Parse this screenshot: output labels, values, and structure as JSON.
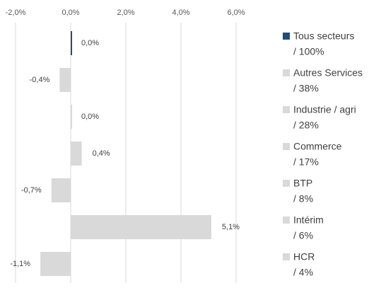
{
  "chart_data": {
    "type": "barh",
    "categories": [
      [
        "Tous secteurs",
        "/ 100%"
      ],
      [
        "Autres Services",
        "/ 38%"
      ],
      [
        "Industrie / agri",
        "/ 28%"
      ],
      [
        "Commerce",
        "/ 17%"
      ],
      [
        "BTP",
        "/ 8%"
      ],
      [
        "Intérim",
        "/ 6%"
      ],
      [
        "HCR",
        "/ 4%"
      ]
    ],
    "values": [
      0.0,
      -0.4,
      0.0,
      0.4,
      -0.7,
      5.1,
      -1.1
    ],
    "value_labels": [
      "0,0%",
      "-0,4%",
      "0,0%",
      "0,4%",
      "-0,7%",
      "5,1%",
      "-1,1%"
    ],
    "colors": [
      "#1f4e79",
      "#d9d9d9",
      "#d9d9d9",
      "#d9d9d9",
      "#d9d9d9",
      "#d9d9d9",
      "#d9d9d9"
    ],
    "xlim": [
      -2.0,
      6.0
    ],
    "xticks": [
      {
        "value": -2.0,
        "label": "-2,0%"
      },
      {
        "value": 0.0,
        "label": "0,0%"
      },
      {
        "value": 2.0,
        "label": "2,0%"
      },
      {
        "value": 4.0,
        "label": "4,0%"
      },
      {
        "value": 6.0,
        "label": "6,0%"
      }
    ],
    "grid": true
  }
}
